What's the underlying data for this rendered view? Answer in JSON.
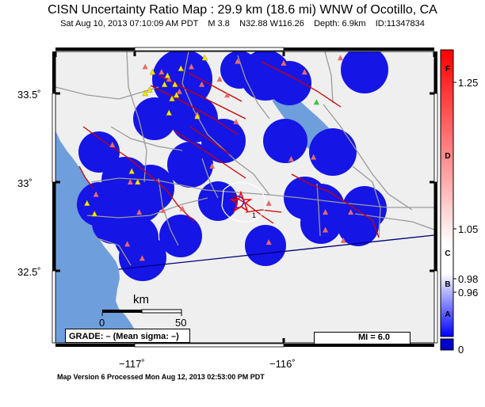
{
  "header": {
    "title": "CISN Uncertainty Ratio Map : 29.9 km (18.6 mi) WNW of Ocotillo, CA",
    "subtitle": "Sat Aug 10, 2013 07:10:09 AM PDT    M 3.8    N32.88 W116.26    Depth: 6.9km    ID:11347834"
  },
  "axes": {
    "lat_ticks": [
      "33.5˚",
      "33˚",
      "32.5˚"
    ],
    "lon_ticks": [
      "−117˚",
      "−116˚"
    ]
  },
  "scalebar": {
    "title": "km",
    "start": "0",
    "end": "50"
  },
  "grade_label": "GRADE: – (Mean sigma: –)",
  "mi_label": "MI = 6.0",
  "colorbar": {
    "grades": [
      "F",
      "D",
      "C",
      "B",
      "A"
    ],
    "values": [
      "1.25",
      "1.05",
      "0.98",
      "0.96",
      "0"
    ],
    "colors": {
      "high": "#ff0000",
      "mid": "#ffffff",
      "low": "#0000ff",
      "bottom": "#0000cc"
    }
  },
  "footer": "Map Version 6 Processed Mon Aug 12, 2013 02:53:00 PM PDT",
  "map": {
    "colors": {
      "land": "#efefef",
      "ocean": "#6f9edc",
      "uncertainty": "#1515e6",
      "faults": "#cc0000",
      "roads": "#9a9a9a",
      "border": "#00007a"
    },
    "stations": [
      {
        "type": "seismic",
        "lon": -116.93,
        "lat": 33.65
      },
      {
        "type": "seismic",
        "lon": -116.82,
        "lat": 33.62
      },
      {
        "type": "seismic",
        "lon": -116.77,
        "lat": 33.58
      },
      {
        "type": "seismic",
        "lon": -116.7,
        "lat": 33.51
      },
      {
        "type": "seismic",
        "lon": -116.62,
        "lat": 33.65
      },
      {
        "type": "seismic",
        "lon": -116.55,
        "lat": 33.55
      },
      {
        "type": "seismic",
        "lon": -116.43,
        "lat": 33.58
      },
      {
        "type": "seismic",
        "lon": -116.38,
        "lat": 33.49
      },
      {
        "type": "seismic",
        "lon": -116.31,
        "lat": 33.68
      },
      {
        "type": "seismic",
        "lon": -116.0,
        "lat": 33.67
      },
      {
        "type": "seismic",
        "lon": -115.86,
        "lat": 33.62
      },
      {
        "type": "seismic",
        "lon": -115.62,
        "lat": 33.7
      },
      {
        "type": "seismic",
        "lon": -116.58,
        "lat": 33.38
      },
      {
        "type": "seismic",
        "lon": -116.32,
        "lat": 33.34
      },
      {
        "type": "seismic",
        "lon": -117.15,
        "lat": 33.21
      },
      {
        "type": "seismic",
        "lon": -116.48,
        "lat": 33.09
      },
      {
        "type": "seismic",
        "lon": -115.95,
        "lat": 33.13
      },
      {
        "type": "seismic",
        "lon": -115.8,
        "lat": 33.14
      },
      {
        "type": "seismic",
        "lon": -117.03,
        "lat": 33.0
      },
      {
        "type": "seismic",
        "lon": -117.26,
        "lat": 32.93
      },
      {
        "type": "seismic",
        "lon": -116.97,
        "lat": 32.83
      },
      {
        "type": "seismic",
        "lon": -116.81,
        "lat": 32.84
      },
      {
        "type": "seismic",
        "lon": -116.68,
        "lat": 32.85
      },
      {
        "type": "seismic",
        "lon": -116.1,
        "lat": 32.88
      },
      {
        "type": "seismic",
        "lon": -115.72,
        "lat": 32.83
      },
      {
        "type": "seismic",
        "lon": -115.55,
        "lat": 32.83
      },
      {
        "type": "seismic",
        "lon": -115.72,
        "lat": 32.73
      },
      {
        "type": "seismic",
        "lon": -117.05,
        "lat": 32.65
      },
      {
        "type": "seismic",
        "lon": -116.95,
        "lat": 32.57
      },
      {
        "type": "seismic",
        "lon": -116.1,
        "lat": 32.66
      },
      {
        "type": "seismic",
        "lon": -115.6,
        "lat": 32.67
      },
      {
        "type": "strong-motion",
        "lon": -116.88,
        "lat": 33.62
      },
      {
        "type": "strong-motion",
        "lon": -116.78,
        "lat": 33.6
      },
      {
        "type": "strong-motion",
        "lon": -116.73,
        "lat": 33.55
      },
      {
        "type": "strong-motion",
        "lon": -116.69,
        "lat": 33.64
      },
      {
        "type": "strong-motion",
        "lon": -116.53,
        "lat": 33.7
      },
      {
        "type": "strong-motion",
        "lon": -116.8,
        "lat": 33.55
      },
      {
        "type": "strong-motion",
        "lon": -116.9,
        "lat": 33.52
      },
      {
        "type": "strong-motion",
        "lon": -116.93,
        "lat": 33.5
      },
      {
        "type": "strong-motion",
        "lon": -116.72,
        "lat": 33.49
      },
      {
        "type": "strong-motion",
        "lon": -116.75,
        "lat": 33.47
      },
      {
        "type": "strong-motion",
        "lon": -116.77,
        "lat": 33.39
      },
      {
        "type": "strong-motion",
        "lon": -116.58,
        "lat": 33.37
      },
      {
        "type": "strong-motion",
        "lon": -117.02,
        "lat": 33.06
      },
      {
        "type": "strong-motion",
        "lon": -116.98,
        "lat": 33.0
      },
      {
        "type": "strong-motion",
        "lon": -117.32,
        "lat": 32.88
      },
      {
        "type": "strong-motion",
        "lon": -117.27,
        "lat": 32.82
      },
      {
        "type": "calibration",
        "lon": -115.78,
        "lat": 33.45
      }
    ]
  }
}
